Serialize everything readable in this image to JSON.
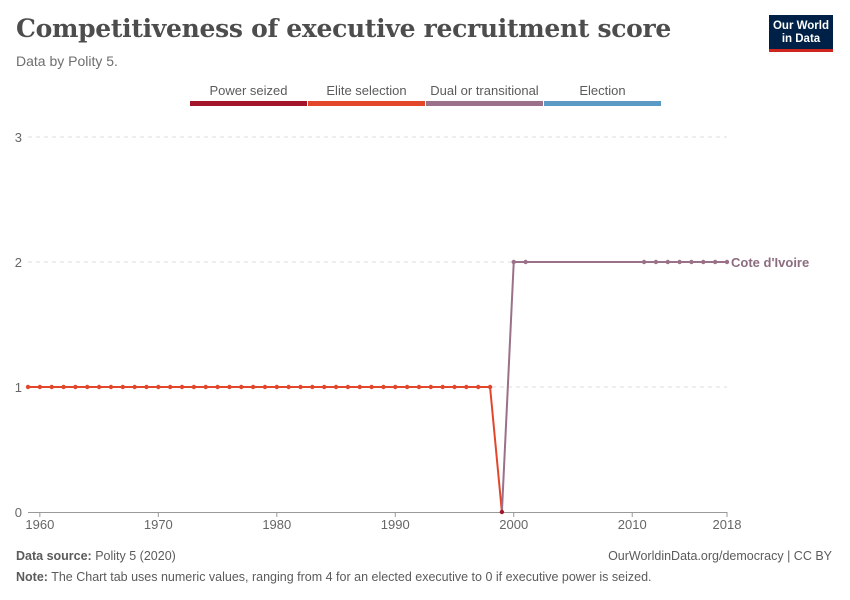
{
  "header": {
    "title": "Competitiveness of executive recruitment score",
    "subtitle": "Data by Polity 5."
  },
  "logo": {
    "line1": "Our World",
    "line2": "in Data",
    "bg_color": "#002147",
    "accent_color": "#ce261e"
  },
  "legend": [
    {
      "label": "Power seized",
      "color": "#a2152b"
    },
    {
      "label": "Elite selection",
      "color": "#e2472c"
    },
    {
      "label": "Dual or transitional",
      "color": "#9a7188"
    },
    {
      "label": "Election",
      "color": "#5a9ac4"
    }
  ],
  "footer": {
    "source_label": "Data source:",
    "source_text": "Polity 5 (2020)",
    "note_label": "Note:",
    "note_text": "The Chart tab uses numeric values, ranging from 4 for an elected executive to 0 if executive power is seized.",
    "url_text": "OurWorldinData.org/democracy | CC BY"
  },
  "chart_data": {
    "type": "line",
    "title": "Competitiveness of executive recruitment score",
    "xlim": [
      1959,
      2018
    ],
    "ylim": [
      0,
      3
    ],
    "x_ticks": [
      1960,
      1970,
      1980,
      1990,
      2000,
      2010,
      2018
    ],
    "y_ticks": [
      0,
      1,
      2,
      3
    ],
    "grid": "horizontal dashed",
    "legend_position": "top",
    "series": [
      {
        "name": "Cote d'Ivoire",
        "label_color": "#8c6d80",
        "points": [
          [
            1959,
            1
          ],
          [
            1960,
            1
          ],
          [
            1961,
            1
          ],
          [
            1962,
            1
          ],
          [
            1963,
            1
          ],
          [
            1964,
            1
          ],
          [
            1965,
            1
          ],
          [
            1966,
            1
          ],
          [
            1967,
            1
          ],
          [
            1968,
            1
          ],
          [
            1969,
            1
          ],
          [
            1970,
            1
          ],
          [
            1971,
            1
          ],
          [
            1972,
            1
          ],
          [
            1973,
            1
          ],
          [
            1974,
            1
          ],
          [
            1975,
            1
          ],
          [
            1976,
            1
          ],
          [
            1977,
            1
          ],
          [
            1978,
            1
          ],
          [
            1979,
            1
          ],
          [
            1980,
            1
          ],
          [
            1981,
            1
          ],
          [
            1982,
            1
          ],
          [
            1983,
            1
          ],
          [
            1984,
            1
          ],
          [
            1985,
            1
          ],
          [
            1986,
            1
          ],
          [
            1987,
            1
          ],
          [
            1988,
            1
          ],
          [
            1989,
            1
          ],
          [
            1990,
            1
          ],
          [
            1991,
            1
          ],
          [
            1992,
            1
          ],
          [
            1993,
            1
          ],
          [
            1994,
            1
          ],
          [
            1995,
            1
          ],
          [
            1996,
            1
          ],
          [
            1997,
            1
          ],
          [
            1998,
            1
          ],
          [
            1999,
            0
          ],
          [
            2000,
            2
          ],
          [
            2001,
            2
          ],
          [
            2011,
            2
          ],
          [
            2012,
            2
          ],
          [
            2013,
            2
          ],
          [
            2014,
            2
          ],
          [
            2015,
            2
          ],
          [
            2016,
            2
          ],
          [
            2017,
            2
          ],
          [
            2018,
            2
          ]
        ]
      }
    ]
  }
}
